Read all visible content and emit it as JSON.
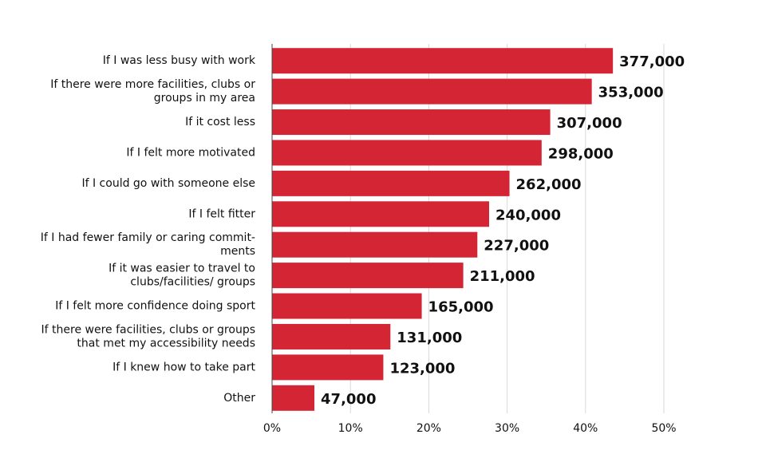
{
  "chart_data": {
    "type": "bar",
    "orientation": "horizontal",
    "categories": [
      [
        "If I was less busy with work"
      ],
      [
        "If there were more facilities, clubs or",
        "groups in my area"
      ],
      [
        "If it cost less"
      ],
      [
        "If I felt more motivated"
      ],
      [
        "If I could go with someone else"
      ],
      [
        "If I felt fitter"
      ],
      [
        "If I had fewer family or caring commit-",
        "ments"
      ],
      [
        "If it was easier to travel to",
        "clubs/facilities/ groups"
      ],
      [
        "If I felt more confidence doing sport"
      ],
      [
        "If there were facilities, clubs or groups",
        "that met my accessibility needs"
      ],
      [
        "If I knew how to take part"
      ],
      [
        "Other"
      ]
    ],
    "values": [
      43.5,
      40.8,
      35.5,
      34.4,
      30.3,
      27.7,
      26.2,
      24.4,
      19.1,
      15.1,
      14.2,
      5.4
    ],
    "counts": [
      377000,
      353000,
      307000,
      298000,
      262000,
      240000,
      227000,
      211000,
      165000,
      131000,
      123000,
      47000
    ],
    "count_labels": [
      "377,000",
      "353,000",
      "307,000",
      "298,000",
      "262,000",
      "240,000",
      "227,000",
      "211,000",
      "165,000",
      "131,000",
      "123,000",
      "47,000"
    ],
    "color": "#d42535",
    "xlim": [
      0,
      50
    ],
    "xticks": [
      {
        "value": 0,
        "label": "0%"
      },
      {
        "value": 10,
        "label": "10%"
      },
      {
        "value": 20,
        "label": "20%"
      },
      {
        "value": 30,
        "label": "30%"
      },
      {
        "value": 40,
        "label": "40%"
      },
      {
        "value": 50,
        "label": "50%"
      }
    ],
    "grid": true
  }
}
